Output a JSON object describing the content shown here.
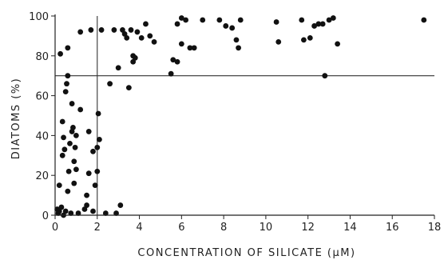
{
  "chart_data": {
    "type": "scatter",
    "title": "",
    "xlabel": "CONCENTRATION OF SILICATE (μM)",
    "ylabel": "DIATOMS (%)",
    "xlim": [
      0,
      18
    ],
    "ylim": [
      0,
      100
    ],
    "xticks": [
      0,
      2,
      4,
      6,
      8,
      10,
      12,
      14,
      16,
      18
    ],
    "yticks": [
      0,
      20,
      40,
      60,
      80,
      100
    ],
    "grid": false,
    "legend": "none",
    "point_color": "#111111",
    "reference_lines": [
      {
        "orientation": "vertical",
        "x": 2
      },
      {
        "orientation": "horizontal",
        "y": 70
      }
    ],
    "points": [
      [
        0.1,
        3
      ],
      [
        0.15,
        1
      ],
      [
        0.2,
        15
      ],
      [
        0.2,
        2
      ],
      [
        0.25,
        81
      ],
      [
        0.3,
        4
      ],
      [
        0.35,
        30
      ],
      [
        0.35,
        47
      ],
      [
        0.4,
        39
      ],
      [
        0.4,
        0
      ],
      [
        0.45,
        33
      ],
      [
        0.5,
        2
      ],
      [
        0.5,
        62
      ],
      [
        0.55,
        66
      ],
      [
        0.6,
        70
      ],
      [
        0.6,
        84
      ],
      [
        0.6,
        12
      ],
      [
        0.65,
        22
      ],
      [
        0.7,
        36
      ],
      [
        0.75,
        1
      ],
      [
        0.8,
        42
      ],
      [
        0.8,
        56
      ],
      [
        0.85,
        44
      ],
      [
        0.9,
        27
      ],
      [
        0.9,
        16
      ],
      [
        0.95,
        34
      ],
      [
        1.0,
        23
      ],
      [
        1.0,
        40
      ],
      [
        1.1,
        1
      ],
      [
        1.2,
        53
      ],
      [
        1.2,
        92
      ],
      [
        1.4,
        3
      ],
      [
        1.5,
        5
      ],
      [
        1.5,
        10
      ],
      [
        1.6,
        21
      ],
      [
        1.6,
        42
      ],
      [
        1.7,
        93
      ],
      [
        1.8,
        32
      ],
      [
        1.8,
        2
      ],
      [
        1.9,
        15
      ],
      [
        2.0,
        34
      ],
      [
        2.0,
        22
      ],
      [
        2.05,
        51
      ],
      [
        2.1,
        38
      ],
      [
        2.2,
        93
      ],
      [
        2.4,
        1
      ],
      [
        2.6,
        66
      ],
      [
        2.8,
        93
      ],
      [
        2.9,
        1
      ],
      [
        3.0,
        74
      ],
      [
        3.1,
        5
      ],
      [
        3.2,
        93
      ],
      [
        3.3,
        91
      ],
      [
        3.4,
        89
      ],
      [
        3.5,
        64
      ],
      [
        3.6,
        93
      ],
      [
        3.7,
        80
      ],
      [
        3.7,
        77
      ],
      [
        3.8,
        79
      ],
      [
        3.9,
        92
      ],
      [
        4.1,
        89
      ],
      [
        4.3,
        96
      ],
      [
        4.5,
        90
      ],
      [
        4.7,
        87
      ],
      [
        5.5,
        71
      ],
      [
        5.6,
        78
      ],
      [
        5.8,
        77
      ],
      [
        5.8,
        96
      ],
      [
        6.0,
        99
      ],
      [
        6.0,
        86
      ],
      [
        6.2,
        98
      ],
      [
        6.4,
        84
      ],
      [
        6.6,
        84
      ],
      [
        7.0,
        98
      ],
      [
        7.8,
        98
      ],
      [
        8.1,
        95
      ],
      [
        8.4,
        94
      ],
      [
        8.6,
        88
      ],
      [
        8.7,
        84
      ],
      [
        8.8,
        98
      ],
      [
        10.5,
        97
      ],
      [
        10.6,
        87
      ],
      [
        11.7,
        98
      ],
      [
        11.8,
        88
      ],
      [
        12.1,
        89
      ],
      [
        12.3,
        95
      ],
      [
        12.5,
        96
      ],
      [
        12.7,
        96
      ],
      [
        12.8,
        70
      ],
      [
        13.0,
        98
      ],
      [
        13.2,
        99
      ],
      [
        13.4,
        86
      ],
      [
        17.5,
        98
      ]
    ]
  }
}
